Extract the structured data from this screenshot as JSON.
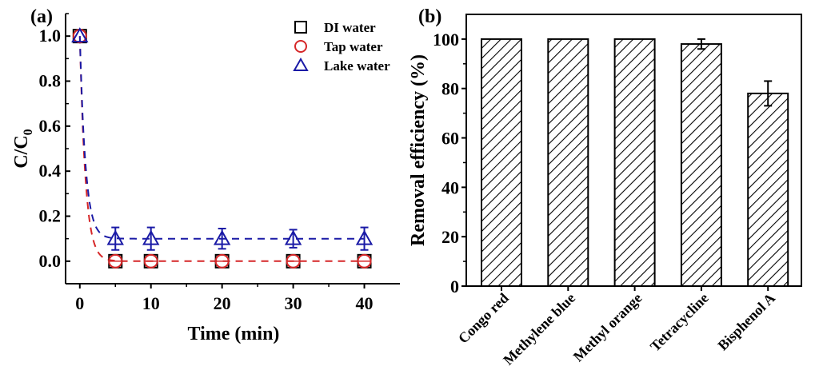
{
  "chart_data": [
    {
      "panel_label": "(a)",
      "type": "scatter",
      "xlabel": "Time (min)",
      "ylabel_main": "C/C",
      "ylabel_sub": "0",
      "xlim": [
        -2,
        45
      ],
      "ylim": [
        -0.1,
        1.1
      ],
      "xticks": [
        0,
        10,
        20,
        30,
        40
      ],
      "yticks": [
        "0.0",
        "0.2",
        "0.4",
        "0.6",
        "0.8",
        "1.0"
      ],
      "grid": false,
      "legend_placement": "top-right",
      "series": [
        {
          "name": "DI water",
          "marker": "square",
          "color": "#000000",
          "x": [
            0,
            5,
            10,
            20,
            30,
            40
          ],
          "y": [
            1.0,
            0,
            0,
            0,
            0,
            0
          ],
          "err": [
            0,
            0,
            0,
            0,
            0,
            0
          ]
        },
        {
          "name": "Tap water",
          "marker": "circle",
          "color": "#d62728",
          "x": [
            0,
            5,
            10,
            20,
            30,
            40
          ],
          "y": [
            1.0,
            0,
            0,
            0,
            0,
            0
          ],
          "err": [
            0,
            0,
            0,
            0,
            0,
            0
          ],
          "fit": {
            "style": "dashed",
            "plateau": 0.0
          }
        },
        {
          "name": "Lake water",
          "marker": "triangle",
          "color": "#1a1aa6",
          "x": [
            0,
            5,
            10,
            20,
            30,
            40
          ],
          "y": [
            1.0,
            0.1,
            0.1,
            0.1,
            0.1,
            0.1
          ],
          "err": [
            0,
            0.05,
            0.05,
            0.045,
            0.04,
            0.05
          ],
          "fit": {
            "style": "dashed",
            "plateau": 0.1
          }
        }
      ]
    },
    {
      "panel_label": "(b)",
      "type": "bar",
      "ylabel": "Removal efficiency (%)",
      "xlabel": "",
      "ylim": [
        0,
        110
      ],
      "yticks": [
        0,
        20,
        40,
        60,
        80,
        100
      ],
      "grid": false,
      "bar_fill": "diagonal-hatch",
      "categories": [
        "Congo red",
        "Methylene blue",
        "Methyl orange",
        "Tetracycline",
        "Bisphenol A"
      ],
      "values": [
        100,
        100,
        100,
        98,
        78
      ],
      "errors": [
        0,
        0,
        0,
        2,
        5
      ]
    }
  ]
}
